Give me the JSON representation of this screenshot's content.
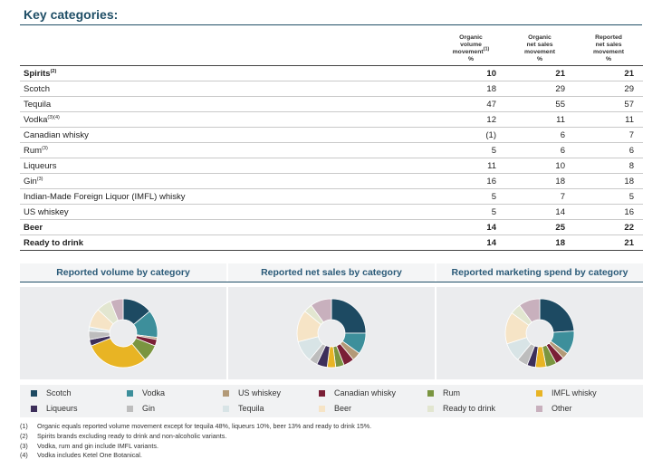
{
  "title": "Key categories:",
  "table": {
    "headers": [
      {
        "lines": [
          "Organic",
          "volume",
          "movement"
        ],
        "sup": "(1)",
        "unit": "%"
      },
      {
        "lines": [
          "Organic",
          "net sales",
          "movement"
        ],
        "sup": "",
        "unit": "%"
      },
      {
        "lines": [
          "Reported",
          "net sales",
          "movement"
        ],
        "sup": "",
        "unit": "%"
      }
    ],
    "rows": [
      {
        "label": "Spirits",
        "sup": "(2)",
        "bold": true,
        "v": [
          "10",
          "21",
          "21"
        ]
      },
      {
        "label": "Scotch",
        "sup": "",
        "bold": false,
        "v": [
          "18",
          "29",
          "29"
        ]
      },
      {
        "label": "Tequila",
        "sup": "",
        "bold": false,
        "v": [
          "47",
          "55",
          "57"
        ]
      },
      {
        "label": "Vodka",
        "sup": "(3)(4)",
        "bold": false,
        "v": [
          "12",
          "11",
          "11"
        ]
      },
      {
        "label": "Canadian whisky",
        "sup": "",
        "bold": false,
        "v": [
          "(1)",
          "6",
          "7"
        ]
      },
      {
        "label": "Rum",
        "sup": "(3)",
        "bold": false,
        "v": [
          "5",
          "6",
          "6"
        ]
      },
      {
        "label": "Liqueurs",
        "sup": "",
        "bold": false,
        "v": [
          "11",
          "10",
          "8"
        ]
      },
      {
        "label": "Gin",
        "sup": "(3)",
        "bold": false,
        "v": [
          "16",
          "18",
          "18"
        ]
      },
      {
        "label": "Indian-Made Foreign Liquor (IMFL) whisky",
        "sup": "",
        "bold": false,
        "v": [
          "5",
          "7",
          "5"
        ]
      },
      {
        "label": "US whiskey",
        "sup": "",
        "bold": false,
        "v": [
          "5",
          "14",
          "16"
        ]
      },
      {
        "label": "Beer",
        "sup": "",
        "bold": true,
        "v": [
          "14",
          "25",
          "22"
        ]
      },
      {
        "label": "Ready to drink",
        "sup": "",
        "bold": true,
        "v": [
          "14",
          "18",
          "21"
        ]
      }
    ]
  },
  "pie_titles": [
    "Reported volume by category",
    "Reported net sales by category",
    "Reported marketing spend by category"
  ],
  "legend": [
    {
      "label": "Scotch",
      "color": "#1d4a62"
    },
    {
      "label": "Vodka",
      "color": "#3d8f9b"
    },
    {
      "label": "US whiskey",
      "color": "#b39a78"
    },
    {
      "label": "Canadian whisky",
      "color": "#7a1f36"
    },
    {
      "label": "Rum",
      "color": "#7a9540"
    },
    {
      "label": "IMFL whisky",
      "color": "#e8b424"
    },
    {
      "label": "Liqueurs",
      "color": "#3d2f5a"
    },
    {
      "label": "Gin",
      "color": "#bdbdbd"
    },
    {
      "label": "Tequila",
      "color": "#d8e4e6"
    },
    {
      "label": "Beer",
      "color": "#f6e4c6"
    },
    {
      "label": "Ready to drink",
      "color": "#e2e6d0"
    },
    {
      "label": "Other",
      "color": "#c8b0bd"
    }
  ],
  "chart_data": [
    {
      "type": "pie",
      "title": "Reported volume by category",
      "categories": [
        "Scotch",
        "Vodka",
        "US whiskey",
        "Canadian whisky",
        "Rum",
        "IMFL whisky",
        "Liqueurs",
        "Gin",
        "Tequila",
        "Beer",
        "Ready to drink",
        "Other"
      ],
      "values": [
        14,
        13,
        1,
        3,
        8,
        30,
        3,
        4,
        2,
        9,
        7,
        6
      ]
    },
    {
      "type": "pie",
      "title": "Reported net sales by category",
      "categories": [
        "Scotch",
        "Vodka",
        "US whiskey",
        "Canadian whisky",
        "Rum",
        "IMFL whisky",
        "Liqueurs",
        "Gin",
        "Tequila",
        "Beer",
        "Ready to drink",
        "Other"
      ],
      "values": [
        25,
        10,
        4,
        5,
        4,
        4,
        5,
        4,
        10,
        15,
        4,
        10
      ]
    },
    {
      "type": "pie",
      "title": "Reported marketing spend by category",
      "categories": [
        "Scotch",
        "Vodka",
        "US whiskey",
        "Canadian whisky",
        "Rum",
        "IMFL whisky",
        "Liqueurs",
        "Gin",
        "Tequila",
        "Beer",
        "Ready to drink",
        "Other"
      ],
      "values": [
        24,
        11,
        3,
        4,
        5,
        5,
        4,
        5,
        9,
        15,
        5,
        10
      ]
    }
  ],
  "notes": [
    {
      "n": "(1)",
      "text": "Organic equals reported volume movement except for tequila 48%, liqueurs 10%, beer 13% and ready to drink 15%."
    },
    {
      "n": "(2)",
      "text": "Spirits brands excluding ready to drink and non-alcoholic variants."
    },
    {
      "n": "(3)",
      "text": "Vodka, rum and gin include IMFL variants."
    },
    {
      "n": "(4)",
      "text": "Vodka includes Ketel One Botanical."
    }
  ]
}
